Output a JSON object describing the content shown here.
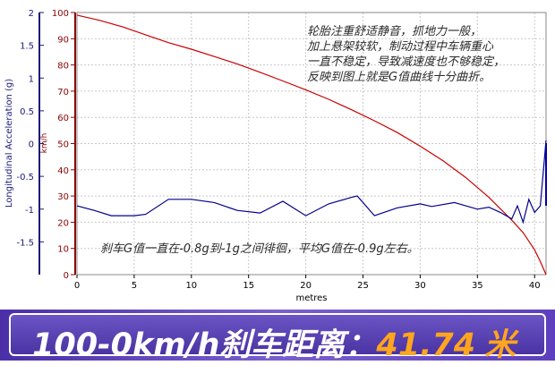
{
  "chart_data": {
    "type": "line",
    "xlabel": "metres",
    "ylabel_left": "Longitudinal Acceleration (g)",
    "ylabel_right": "km/h",
    "xlim": [
      0,
      41
    ],
    "ylim_left": [
      -2,
      2
    ],
    "ylim_right": [
      0,
      100
    ],
    "x_ticks": [
      "0",
      "5",
      "10",
      "15",
      "20",
      "25",
      "30",
      "35",
      "40"
    ],
    "left_ticks": [
      "2",
      "1.5",
      "1",
      "0.5",
      "0",
      "-0.5",
      "-1",
      "-1.5"
    ],
    "right_ticks": [
      "100",
      "90",
      "80",
      "70",
      "60",
      "50",
      "40",
      "30",
      "20",
      "10",
      "0"
    ],
    "grid": true,
    "series": [
      {
        "axis": "right",
        "color": "#cc0000",
        "x": [
          0,
          2,
          4,
          6,
          8,
          10,
          12,
          14,
          16,
          18,
          20,
          22,
          24,
          26,
          28,
          30,
          32,
          34,
          36,
          38,
          39,
          40,
          40.5,
          41
        ],
        "y": [
          99,
          97,
          94.5,
          91.5,
          88.5,
          86,
          83.2,
          80.4,
          77.2,
          73.9,
          70.5,
          66.9,
          62.9,
          58.7,
          54.2,
          49,
          43.4,
          37,
          29.5,
          20.8,
          16,
          9.5,
          5,
          0
        ]
      },
      {
        "axis": "left",
        "color": "#00008b",
        "x": [
          0,
          1.5,
          3,
          5,
          6,
          8,
          10,
          12,
          14,
          16,
          18,
          20,
          22,
          24,
          24.5,
          26,
          28,
          30,
          31,
          33,
          35,
          36,
          37,
          38,
          38.5,
          39,
          39.5,
          40,
          40.5,
          41
        ],
        "y": [
          -0.95,
          -1.02,
          -1.1,
          -1.1,
          -1.08,
          -0.85,
          -0.85,
          -0.9,
          -1.02,
          -1.06,
          -0.88,
          -1.1,
          -0.92,
          -0.82,
          -0.8,
          -1.1,
          -0.98,
          -0.92,
          -0.96,
          -0.9,
          -1.0,
          -0.97,
          -1.05,
          -1.15,
          -0.95,
          -1.2,
          -0.85,
          -1.05,
          -0.95,
          0.05
        ]
      }
    ],
    "annotations": [
      "轮胎注重舒适静音，抓地力一般，",
      "加上悬架较软，制动过程中车辆重心",
      "一直不稳定，导致减速度也不够稳定，",
      "反映到图上就是G值曲线十分曲折。",
      "刹车G值一直在-0.8g到-1g之间徘徊，平均G值在-0.9g左右。"
    ]
  },
  "banner": {
    "label": "100-0km/h刹车距离：",
    "value": "41.74",
    "unit": "米"
  }
}
